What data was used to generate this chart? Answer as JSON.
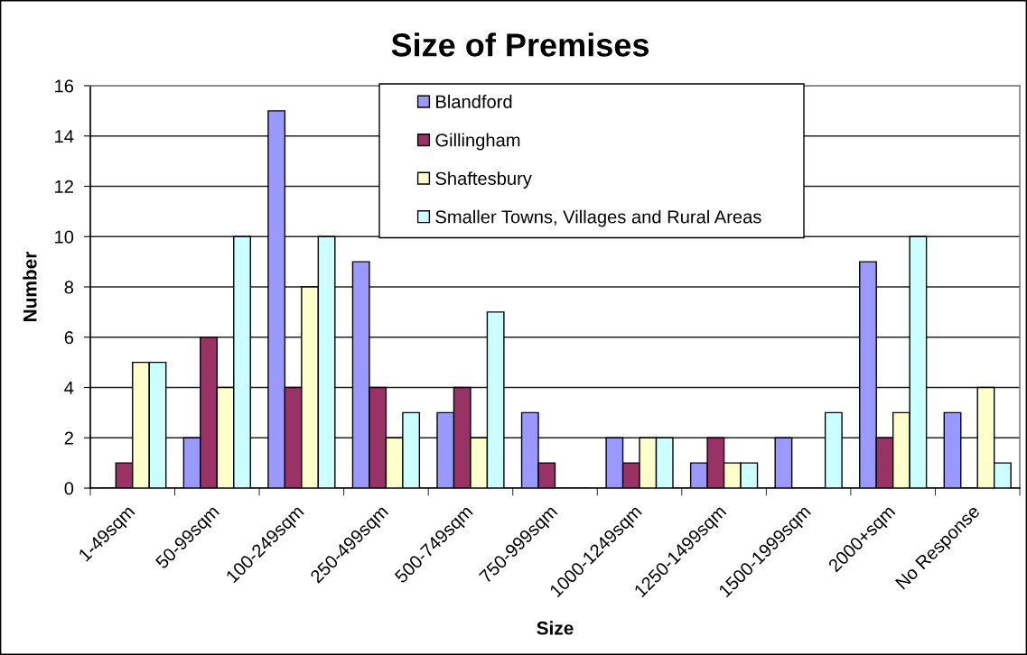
{
  "chart_data": {
    "type": "bar",
    "title": "Size of Premises",
    "xlabel": "Size",
    "ylabel": "Number",
    "categories": [
      "1-49sqm",
      "50-99sqm",
      "100-249sqm",
      "250-499sqm",
      "500-749sqm",
      "750-999sqm",
      "1000-1249sqm",
      "1250-1499sqm",
      "1500-1999sqm",
      "2000+sqm",
      "No Response"
    ],
    "series": [
      {
        "name": "Blandford",
        "color": "#9999ff",
        "values": [
          0,
          2,
          15,
          9,
          3,
          3,
          2,
          1,
          2,
          9,
          3
        ]
      },
      {
        "name": "Gillingham",
        "color": "#993366",
        "values": [
          1,
          6,
          4,
          4,
          4,
          1,
          1,
          2,
          0,
          2,
          0
        ]
      },
      {
        "name": "Shaftesbury",
        "color": "#ffffcc",
        "values": [
          5,
          4,
          8,
          2,
          2,
          0,
          2,
          1,
          0,
          3,
          4
        ]
      },
      {
        "name": "Smaller Towns, Villages and Rural Areas",
        "color": "#ccffff",
        "values": [
          5,
          10,
          10,
          3,
          7,
          0,
          2,
          1,
          3,
          10,
          1
        ]
      }
    ],
    "ylim": [
      0,
      16
    ],
    "yticks": [
      0,
      2,
      4,
      6,
      8,
      10,
      12,
      14,
      16
    ],
    "grid": "y",
    "legend": "top"
  }
}
